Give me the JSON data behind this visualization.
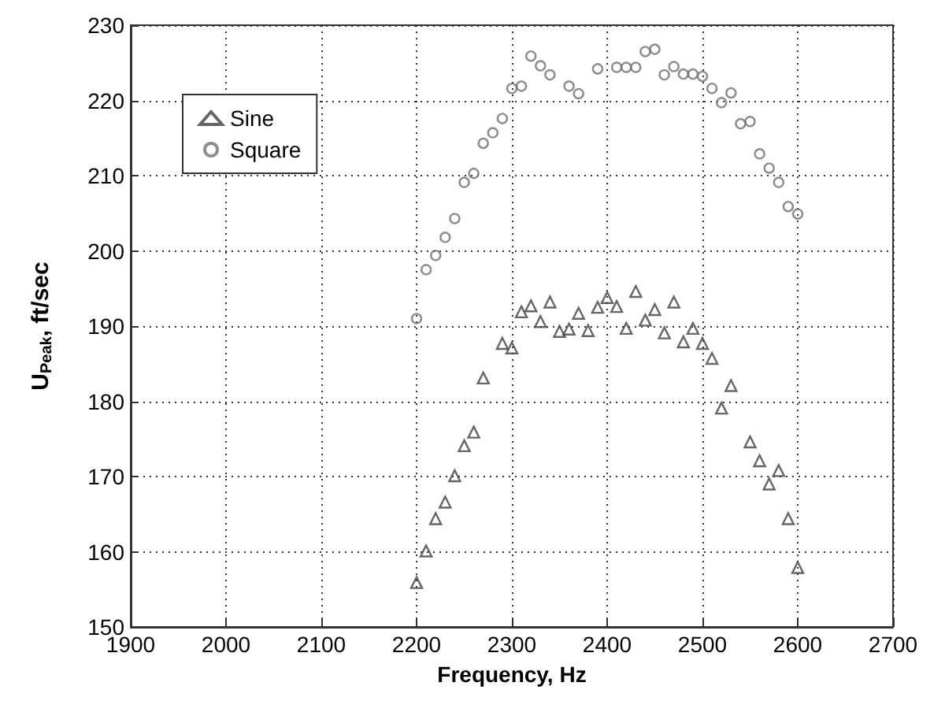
{
  "chart_data": {
    "type": "scatter",
    "xlabel": "Frequency, Hz",
    "ylabel": "U$_{Peak}$, ft/sec",
    "xlim": [
      1900,
      2700
    ],
    "xticks": [
      1900,
      2000,
      2100,
      2200,
      2300,
      2400,
      2500,
      2600,
      2700
    ],
    "ylim": [
      150,
      230
    ],
    "yticks": [
      150,
      160,
      170,
      180,
      190,
      200,
      210,
      220,
      230
    ],
    "grid": true,
    "legend": "top left",
    "series": [
      {
        "name": "Sine",
        "color": "#404040",
        "marker": "triangle",
        "x": [
          2200,
          2210,
          2220,
          2230,
          2240,
          2250,
          2260,
          2270,
          2290,
          2300,
          2310,
          2320,
          2330,
          2340,
          2350,
          2360,
          2370,
          2380,
          2390,
          2400,
          2410,
          2420,
          2430,
          2440,
          2450,
          2460,
          2470,
          2480,
          2490,
          2500,
          2510,
          2520,
          2530,
          2550,
          2560,
          2570,
          2580,
          2590,
          2600
        ],
        "values": [
          155.9,
          160.1,
          164.4,
          166.6,
          170.1,
          174.1,
          175.9,
          183.1,
          187.7,
          187.1,
          191.9,
          192.7,
          190.6,
          193.2,
          189.3,
          189.6,
          191.7,
          189.4,
          192.5,
          193.8,
          192.6,
          189.7,
          194.6,
          190.8,
          192.2,
          189.1,
          193.2,
          187.9,
          189.7,
          187.7,
          185.7,
          179.1,
          182.1,
          174.6,
          172.1,
          169.0,
          170.8,
          164.4,
          157.9
        ]
      },
      {
        "name": "Square",
        "color": "#707070",
        "marker": "circle",
        "x": [
          2200,
          2210,
          2220,
          2230,
          2240,
          2250,
          2260,
          2270,
          2280,
          2290,
          2300,
          2310,
          2320,
          2330,
          2340,
          2360,
          2370,
          2390,
          2410,
          2420,
          2430,
          2440,
          2450,
          2460,
          2470,
          2480,
          2490,
          2500,
          2510,
          2520,
          2530,
          2540,
          2550,
          2560,
          2570,
          2580,
          2590,
          2600
        ],
        "values": [
          191.0,
          197.5,
          199.4,
          201.8,
          204.3,
          209.1,
          210.3,
          214.3,
          215.7,
          217.6,
          221.6,
          221.9,
          225.9,
          224.6,
          223.4,
          221.9,
          220.9,
          224.2,
          224.4,
          224.4,
          224.4,
          226.5,
          226.8,
          223.4,
          224.5,
          223.5,
          223.5,
          223.2,
          221.6,
          219.7,
          221.0,
          216.9,
          217.2,
          212.9,
          211.0,
          209.1,
          205.9,
          204.9
        ]
      }
    ]
  }
}
